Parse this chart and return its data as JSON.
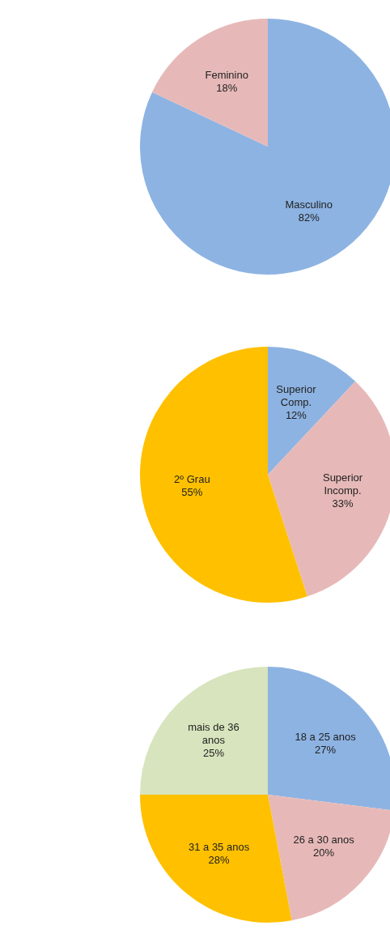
{
  "chart_data": [
    {
      "type": "pie",
      "categories": [
        "Masculino",
        "Feminino"
      ],
      "values": [
        82,
        18
      ],
      "colors": [
        "#8db3e2",
        "#e6b9b8"
      ],
      "value_labels": [
        "82%",
        "18%"
      ],
      "legend": false
    },
    {
      "type": "pie",
      "categories": [
        "Superior Comp.",
        "Superior Incomp.",
        "2º Grau"
      ],
      "values": [
        12,
        33,
        55
      ],
      "colors": [
        "#8db3e2",
        "#e6b9b8",
        "#ffc000"
      ],
      "value_labels": [
        "12%",
        "33%",
        "55%"
      ],
      "legend": false
    },
    {
      "type": "pie",
      "categories": [
        "18 a 25 anos",
        "26 a 30 anos",
        "31 a 35 anos",
        "mais de 36 anos"
      ],
      "values": [
        27,
        20,
        28,
        25
      ],
      "colors": [
        "#8db3e2",
        "#e6b9b8",
        "#ffc000",
        "#d7e4bd"
      ],
      "value_labels": [
        "27%",
        "20%",
        "28%",
        "25%"
      ],
      "legend": false
    }
  ]
}
